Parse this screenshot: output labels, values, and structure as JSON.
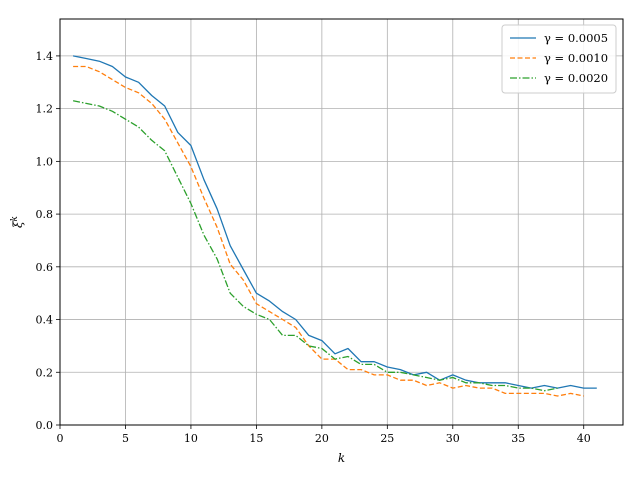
{
  "chart_data": {
    "type": "line",
    "xlabel": "k",
    "ylabel": "ξ^k",
    "xlim": [
      0,
      43
    ],
    "ylim": [
      0,
      1.54
    ],
    "xticks": [
      0,
      5,
      10,
      15,
      20,
      25,
      30,
      35,
      40
    ],
    "yticks": [
      0.0,
      0.2,
      0.4,
      0.6,
      0.8,
      1.0,
      1.2,
      1.4
    ],
    "xtick_labels": [
      "0",
      "5",
      "10",
      "15",
      "20",
      "25",
      "30",
      "35",
      "40"
    ],
    "ytick_labels": [
      "0.0",
      "0.2",
      "0.4",
      "0.6",
      "0.8",
      "1.0",
      "1.2",
      "1.4"
    ],
    "grid": true,
    "legend_position": "top-right",
    "series": [
      {
        "name": "γ = 0.0005",
        "color": "#1f77b4",
        "dash": "solid",
        "x": [
          1,
          2,
          3,
          4,
          5,
          6,
          7,
          8,
          9,
          10,
          11,
          12,
          13,
          14,
          15,
          16,
          17,
          18,
          19,
          20,
          21,
          22,
          23,
          24,
          25,
          26,
          27,
          28,
          29,
          30,
          31,
          32,
          33,
          34,
          35,
          36,
          37,
          38,
          39,
          40,
          41
        ],
        "values": [
          1.4,
          1.39,
          1.38,
          1.36,
          1.32,
          1.3,
          1.25,
          1.21,
          1.11,
          1.06,
          0.93,
          0.82,
          0.68,
          0.59,
          0.5,
          0.47,
          0.43,
          0.4,
          0.34,
          0.32,
          0.27,
          0.29,
          0.24,
          0.24,
          0.22,
          0.21,
          0.19,
          0.2,
          0.17,
          0.19,
          0.17,
          0.16,
          0.16,
          0.16,
          0.15,
          0.14,
          0.15,
          0.14,
          0.15,
          0.14,
          0.14
        ]
      },
      {
        "name": "γ = 0.0010",
        "color": "#ff7f0e",
        "dash": "dashed",
        "x": [
          1,
          2,
          3,
          4,
          5,
          6,
          7,
          8,
          9,
          10,
          11,
          12,
          13,
          14,
          15,
          16,
          17,
          18,
          19,
          20,
          21,
          22,
          23,
          24,
          25,
          26,
          27,
          28,
          29,
          30,
          31,
          32,
          33,
          34,
          35,
          36,
          37,
          38,
          39,
          40
        ],
        "values": [
          1.36,
          1.36,
          1.34,
          1.31,
          1.28,
          1.26,
          1.22,
          1.16,
          1.07,
          0.98,
          0.86,
          0.75,
          0.61,
          0.55,
          0.46,
          0.43,
          0.4,
          0.37,
          0.3,
          0.25,
          0.25,
          0.21,
          0.21,
          0.19,
          0.19,
          0.17,
          0.17,
          0.15,
          0.16,
          0.14,
          0.15,
          0.14,
          0.14,
          0.12,
          0.12,
          0.12,
          0.12,
          0.11,
          0.12,
          0.11
        ]
      },
      {
        "name": "γ = 0.0020",
        "color": "#2ca02c",
        "dash": "dashdot",
        "x": [
          1,
          2,
          3,
          4,
          5,
          6,
          7,
          8,
          9,
          10,
          11,
          12,
          13,
          14,
          15,
          16,
          17,
          18,
          19,
          20,
          21,
          22,
          23,
          24,
          25,
          26,
          27,
          28,
          29,
          30,
          31,
          32,
          33,
          34,
          35,
          36,
          37,
          38
        ],
        "values": [
          1.23,
          1.22,
          1.21,
          1.19,
          1.16,
          1.13,
          1.08,
          1.04,
          0.94,
          0.84,
          0.72,
          0.63,
          0.5,
          0.45,
          0.42,
          0.4,
          0.34,
          0.34,
          0.3,
          0.29,
          0.25,
          0.26,
          0.23,
          0.23,
          0.2,
          0.2,
          0.19,
          0.18,
          0.17,
          0.18,
          0.16,
          0.16,
          0.15,
          0.15,
          0.14,
          0.14,
          0.13,
          0.14
        ]
      }
    ]
  }
}
